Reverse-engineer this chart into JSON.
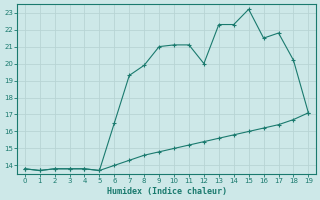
{
  "xlabel": "Humidex (Indice chaleur)",
  "x": [
    0,
    1,
    2,
    3,
    4,
    5,
    6,
    7,
    8,
    9,
    10,
    11,
    12,
    13,
    14,
    15,
    16,
    17,
    18,
    19
  ],
  "y_upper": [
    13.8,
    13.7,
    13.8,
    13.8,
    13.8,
    13.7,
    16.5,
    19.3,
    19.9,
    21.0,
    21.1,
    21.1,
    20.0,
    22.3,
    22.3,
    23.2,
    21.5,
    21.8,
    20.2,
    17.1
  ],
  "y_lower": [
    13.8,
    13.7,
    13.8,
    13.8,
    13.8,
    13.7,
    14.0,
    14.3,
    14.6,
    14.8,
    15.0,
    15.2,
    15.4,
    15.6,
    15.8,
    16.0,
    16.2,
    16.4,
    16.7,
    17.1
  ],
  "line_color": "#1a7a6e",
  "bg_color": "#cde8e8",
  "grid_color": "#b8d4d4",
  "ylim": [
    13.5,
    23.5
  ],
  "xlim": [
    -0.5,
    19.5
  ],
  "yticks": [
    14,
    15,
    16,
    17,
    18,
    19,
    20,
    21,
    22,
    23
  ],
  "xticks": [
    0,
    1,
    2,
    3,
    4,
    5,
    6,
    7,
    8,
    9,
    10,
    11,
    12,
    13,
    14,
    15,
    16,
    17,
    18,
    19
  ]
}
